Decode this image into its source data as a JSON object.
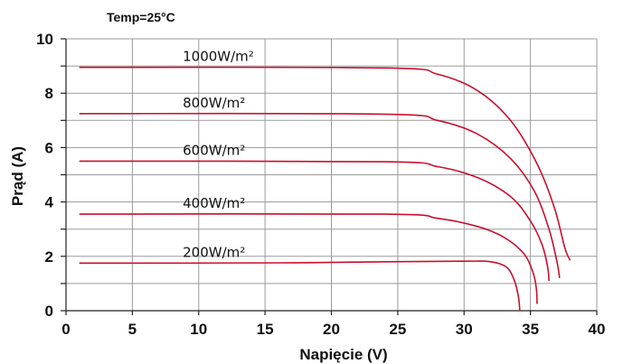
{
  "chart_data": {
    "type": "line",
    "annotation": "Temp=25°C",
    "xlabel": "Napięcie (V)",
    "ylabel": "Prąd (A)",
    "xlim": [
      0,
      40
    ],
    "ylim": [
      0,
      10
    ],
    "x_ticks": [
      "0",
      "5",
      "10",
      "15",
      "20",
      "25",
      "30",
      "35",
      "40"
    ],
    "y_ticks": [
      "0",
      "2",
      "4",
      "6",
      "8",
      "10"
    ],
    "grid": true,
    "line_color": "#c8102e",
    "series": [
      {
        "name": "1000W/m²",
        "isc": 8.95,
        "voc": 38.0,
        "knee_start": 24,
        "points": [
          [
            1,
            8.95
          ],
          [
            24,
            8.93
          ],
          [
            28,
            8.7
          ],
          [
            31,
            8.1
          ],
          [
            33.5,
            7.0
          ],
          [
            35.5,
            5.4
          ],
          [
            36.8,
            3.8
          ],
          [
            37.6,
            2.3
          ],
          [
            38.0,
            1.85
          ]
        ]
      },
      {
        "name": "800W/m²",
        "isc": 7.25,
        "voc": 37.2,
        "knee_start": 24,
        "points": [
          [
            1,
            7.25
          ],
          [
            24,
            7.23
          ],
          [
            28,
            7.0
          ],
          [
            31,
            6.5
          ],
          [
            33.5,
            5.6
          ],
          [
            35.3,
            4.4
          ],
          [
            36.4,
            3.0
          ],
          [
            37.0,
            1.8
          ],
          [
            37.2,
            1.2
          ]
        ]
      },
      {
        "name": "600W/m²",
        "isc": 5.5,
        "voc": 36.4,
        "knee_start": 24,
        "points": [
          [
            1,
            5.5
          ],
          [
            24,
            5.48
          ],
          [
            28,
            5.3
          ],
          [
            31,
            4.9
          ],
          [
            33.5,
            4.2
          ],
          [
            35.0,
            3.3
          ],
          [
            35.9,
            2.4
          ],
          [
            36.3,
            1.6
          ],
          [
            36.4,
            1.1
          ]
        ]
      },
      {
        "name": "400W/m²",
        "isc": 3.55,
        "voc": 35.5,
        "knee_start": 24,
        "points": [
          [
            1,
            3.55
          ],
          [
            24,
            3.55
          ],
          [
            28,
            3.4
          ],
          [
            31,
            3.1
          ],
          [
            33.0,
            2.7
          ],
          [
            34.5,
            2.1
          ],
          [
            35.2,
            1.4
          ],
          [
            35.45,
            0.8
          ],
          [
            35.5,
            0.25
          ]
        ]
      },
      {
        "name": "200W/m²",
        "isc": 1.75,
        "voc": 34.2,
        "knee_start": 24,
        "points": [
          [
            1,
            1.75
          ],
          [
            16,
            1.76
          ],
          [
            24,
            1.8
          ],
          [
            30,
            1.82
          ],
          [
            32,
            1.8
          ],
          [
            33.2,
            1.6
          ],
          [
            33.8,
            1.1
          ],
          [
            34.1,
            0.5
          ],
          [
            34.2,
            0.0
          ]
        ]
      }
    ]
  }
}
